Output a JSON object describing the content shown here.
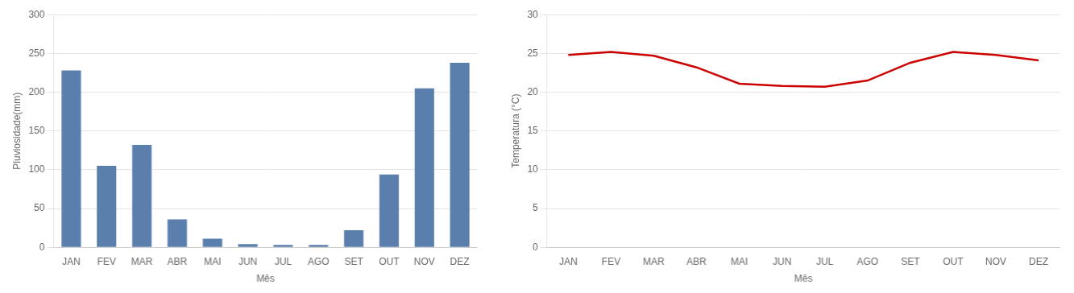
{
  "chart_data": [
    {
      "type": "bar",
      "categories": [
        "JAN",
        "FEV",
        "MAR",
        "ABR",
        "MAI",
        "JUN",
        "JUL",
        "AGO",
        "SET",
        "OUT",
        "NOV",
        "DEZ"
      ],
      "values": [
        228,
        105,
        132,
        36,
        11,
        4,
        3,
        3,
        22,
        94,
        205,
        238
      ],
      "color": "#5b7fac",
      "xlabel": "Mês",
      "ylabel": "Pluviosidade(mm)",
      "ylim": [
        0,
        300
      ],
      "yticks": [
        0,
        50,
        100,
        150,
        200,
        250,
        300
      ],
      "grid": true
    },
    {
      "type": "line",
      "categories": [
        "JAN",
        "FEV",
        "MAR",
        "ABR",
        "MAI",
        "JUN",
        "JUL",
        "AGO",
        "SET",
        "OUT",
        "NOV",
        "DEZ"
      ],
      "values": [
        24.8,
        25.2,
        24.7,
        23.2,
        21.1,
        20.8,
        20.7,
        21.5,
        23.8,
        25.2,
        24.8,
        24.1
      ],
      "color": "#cc0000",
      "xlabel": "Mês",
      "ylabel": "Temperatura (°C)",
      "ylim": [
        0,
        30
      ],
      "yticks": [
        0,
        5,
        10,
        15,
        20,
        25,
        30
      ],
      "grid": true
    }
  ]
}
